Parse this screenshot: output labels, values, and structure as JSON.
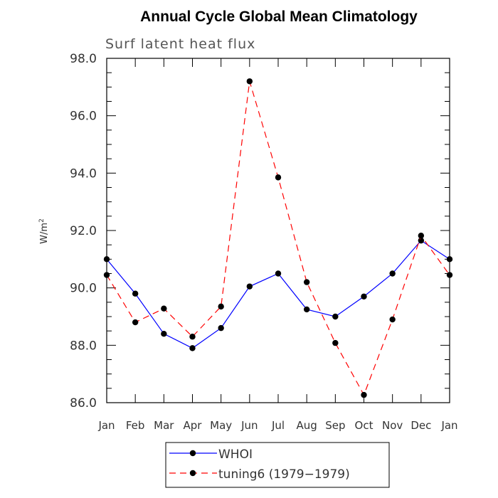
{
  "chart_data": {
    "type": "line",
    "title": "Annual Cycle Global Mean Climatology",
    "subtitle": "Surf latent heat flux",
    "ylabel_base": "W/m",
    "ylabel_sup": "2",
    "xlabel": "",
    "categories": [
      "Jan",
      "Feb",
      "Mar",
      "Apr",
      "May",
      "Jun",
      "Jul",
      "Aug",
      "Sep",
      "Oct",
      "Nov",
      "Dec",
      "Jan"
    ],
    "ylim": [
      86.0,
      98.0
    ],
    "yticks": [
      "86.0",
      "88.0",
      "90.0",
      "92.0",
      "94.0",
      "96.0",
      "98.0"
    ],
    "grid": false,
    "legend_position": "bottom-center",
    "series": [
      {
        "name": "WHOI",
        "color": "#0000ff",
        "dash": "solid",
        "values": [
          91.0,
          89.8,
          88.4,
          87.9,
          88.6,
          90.05,
          90.5,
          89.25,
          89.0,
          89.7,
          90.5,
          91.65,
          91.0
        ]
      },
      {
        "name": "tuning6 (1979−1979)",
        "color": "#ff0000",
        "dash": "dashed",
        "values": [
          90.45,
          88.8,
          89.28,
          88.3,
          89.35,
          97.2,
          93.85,
          90.2,
          88.08,
          86.27,
          88.9,
          91.82,
          90.45
        ]
      }
    ]
  }
}
